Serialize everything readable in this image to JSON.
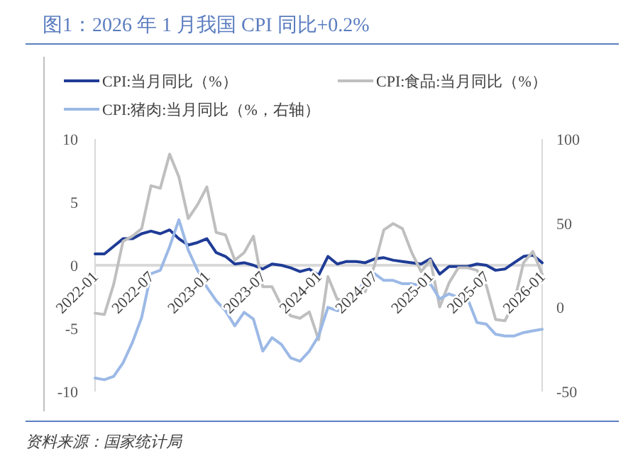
{
  "chart_data": {
    "type": "line",
    "title": "图1：2026 年 1 月我国 CPI 同比+0.2%",
    "x": [
      "2022-01",
      "2022-02",
      "2022-03",
      "2022-04",
      "2022-05",
      "2022-06",
      "2022-07",
      "2022-08",
      "2022-09",
      "2022-10",
      "2022-11",
      "2022-12",
      "2023-01",
      "2023-02",
      "2023-03",
      "2023-04",
      "2023-05",
      "2023-06",
      "2023-07",
      "2023-08",
      "2023-09",
      "2023-10",
      "2023-11",
      "2023-12",
      "2024-01",
      "2024-02",
      "2024-03",
      "2024-04",
      "2024-05",
      "2024-06",
      "2024-07",
      "2024-08",
      "2024-09",
      "2024-10",
      "2024-11",
      "2024-12",
      "2025-01",
      "2025-02",
      "2025-03",
      "2025-04",
      "2025-05",
      "2025-06",
      "2025-07",
      "2025-08",
      "2025-09",
      "2025-10",
      "2025-11",
      "2025-12",
      "2026-01"
    ],
    "series": [
      {
        "name": "CPI:当月同比（%）",
        "color": "#1f3c96",
        "values": [
          0.9,
          0.9,
          1.5,
          2.1,
          2.1,
          2.5,
          2.7,
          2.5,
          2.8,
          2.1,
          1.6,
          1.8,
          2.1,
          1.0,
          0.7,
          0.1,
          0.2,
          0.0,
          -0.3,
          0.1,
          0.0,
          -0.2,
          -0.5,
          -0.3,
          -0.8,
          0.7,
          0.1,
          0.3,
          0.3,
          0.2,
          0.5,
          0.6,
          0.4,
          0.3,
          0.2,
          0.1,
          0.5,
          -0.7,
          -0.1,
          -0.1,
          -0.1,
          0.1,
          0.0,
          -0.4,
          -0.3,
          0.2,
          0.7,
          0.8,
          0.2
        ]
      },
      {
        "name": "CPI:食品:当月同比（%）",
        "color": "#bfbfbf",
        "values": [
          -3.8,
          -3.9,
          -1.5,
          1.9,
          2.3,
          2.9,
          6.3,
          6.1,
          8.8,
          7.0,
          3.7,
          4.8,
          6.2,
          2.6,
          2.4,
          0.4,
          1.0,
          2.3,
          -1.7,
          -1.7,
          -3.2,
          -4.0,
          -4.2,
          -3.7,
          -5.9,
          -0.9,
          -2.7,
          -2.7,
          -2.0,
          -2.1,
          0.0,
          2.8,
          3.3,
          2.9,
          1.0,
          -0.5,
          0.4,
          -3.3,
          -1.4,
          -0.2,
          -0.2,
          -0.4,
          -1.6,
          -4.3,
          -4.4,
          -2.9,
          0.2,
          1.1,
          -0.7
        ]
      },
      {
        "name": "CPI:猪肉:当月同比（%，右轴）",
        "color": "#9cb9e6",
        "axis": "y2",
        "values": [
          -42,
          -43,
          -41,
          -33,
          -21,
          -6,
          20,
          22,
          36,
          52,
          34,
          22,
          12,
          4,
          -2,
          -11,
          -3,
          -7,
          -26,
          -18,
          -22,
          -30,
          -32,
          -26,
          -17,
          0,
          -2,
          -1,
          5,
          18,
          20,
          16,
          16,
          14,
          14,
          13,
          14,
          5,
          8,
          6,
          5,
          -9,
          -10,
          -16,
          -17,
          -17,
          -15,
          -14,
          -13
        ]
      }
    ],
    "xlim": [
      "2022-01",
      "2026-01"
    ],
    "xticks": [
      "2022-01",
      "2022-07",
      "2023-01",
      "2023-07",
      "2024-01",
      "2024-07",
      "2025-01",
      "2025-07",
      "2026-01"
    ],
    "ylim": [
      -10,
      10
    ],
    "yticks": [
      -10,
      -5,
      0,
      5,
      10
    ],
    "y2lim": [
      -50,
      100
    ],
    "y2ticks": [
      -50,
      0,
      50,
      100
    ],
    "legend": "top",
    "annotations": [
      "资料来源：国家统计局"
    ]
  }
}
